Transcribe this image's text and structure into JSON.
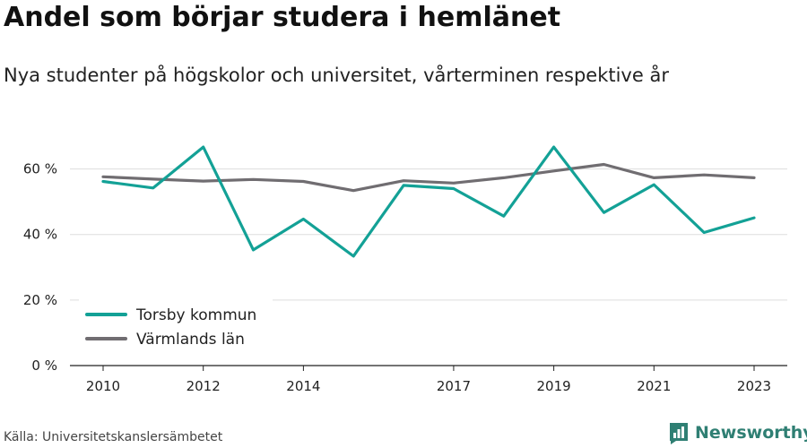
{
  "title": "Andel som börjar studera i hemlänet",
  "subtitle": "Nya studenter på högskolor och universitet, vårterminen respektive år",
  "source": "Källa: Universitetskanslersämbetet",
  "brand": {
    "name": "Newsworthy",
    "logo_icon": "bar-chart-icon",
    "color": "#2f7f73"
  },
  "chart_data": {
    "type": "line",
    "x": [
      2010,
      2011,
      2012,
      2013,
      2014,
      2015,
      2016,
      2017,
      2018,
      2019,
      2020,
      2021,
      2022,
      2023
    ],
    "x_tick_labels": [
      "2010",
      "2012",
      "2014",
      "2017",
      "2019",
      "2021",
      "2023"
    ],
    "x_ticks": [
      2010,
      2012,
      2014,
      2017,
      2019,
      2021,
      2023
    ],
    "y_ticks": [
      0,
      20,
      40,
      60
    ],
    "y_tick_labels": [
      "0 %",
      "20 %",
      "40 %",
      "60 %"
    ],
    "ylim": [
      0,
      70
    ],
    "grid": true,
    "legend_position": "bottom-left",
    "series": [
      {
        "name": "Torsby kommun",
        "color": "#13a196",
        "values": [
          56.2,
          54.2,
          66.7,
          35.3,
          44.7,
          33.4,
          55.0,
          54.0,
          45.6,
          66.7,
          46.7,
          55.2,
          40.6,
          45.1
        ]
      },
      {
        "name": "Värmlands län",
        "color": "#706d71",
        "values": [
          57.6,
          56.9,
          56.3,
          56.8,
          56.2,
          53.4,
          56.4,
          55.7,
          57.3,
          59.4,
          61.4,
          57.3,
          58.2,
          57.3
        ]
      }
    ]
  }
}
